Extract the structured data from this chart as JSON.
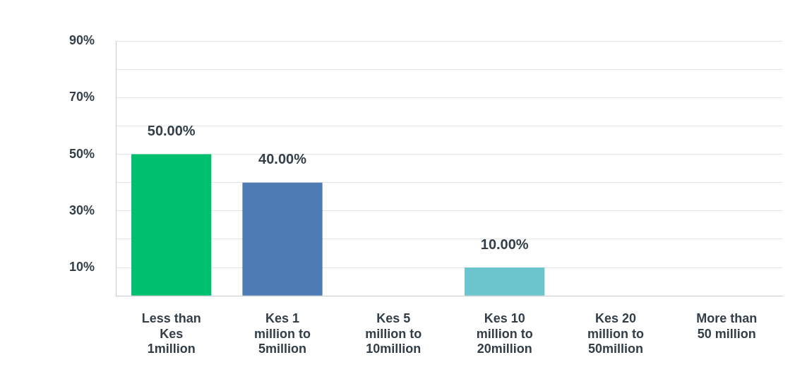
{
  "chart_data": {
    "type": "bar",
    "categories": [
      "Less than Kes 1million",
      "Kes 1 million to 5million",
      "Kes 5 million to 10million",
      "Kes 10 million to 20million",
      "Kes 20 million to 50million",
      "More than 50 million"
    ],
    "values": [
      50,
      40,
      0,
      10,
      0,
      0
    ],
    "colors": [
      "#00bf6f",
      "#4f7bb5",
      "#4f7bb5",
      "#6cc5cc",
      "#6cc5cc",
      "#6cc5cc"
    ],
    "value_labels": [
      "50.00%",
      "40.00%",
      null,
      "10.00%",
      null,
      null
    ],
    "ylim": [
      0,
      90
    ],
    "yticks": [
      {
        "value": 0,
        "label": null
      },
      {
        "value": 10,
        "label": "10%"
      },
      {
        "value": 20,
        "label": null
      },
      {
        "value": 30,
        "label": "30%"
      },
      {
        "value": 40,
        "label": null
      },
      {
        "value": 50,
        "label": "50%"
      },
      {
        "value": 60,
        "label": null
      },
      {
        "value": 70,
        "label": "70%"
      },
      {
        "value": 80,
        "label": null
      },
      {
        "value": 90,
        "label": "90%"
      }
    ],
    "grid": "y",
    "legend": false
  }
}
